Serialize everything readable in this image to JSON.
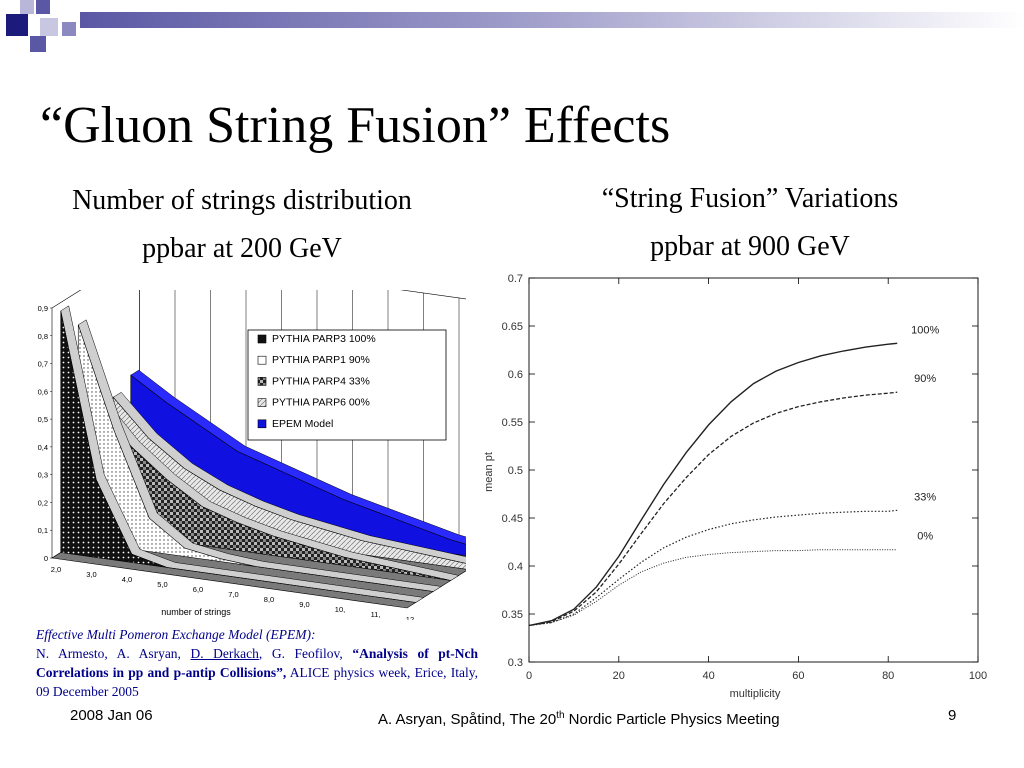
{
  "slide": {
    "title": "“Gluon String Fusion” Effects",
    "left_heading_1": "Number of strings distribution",
    "left_heading_2": "ppbar at 200 GeV",
    "right_heading_1": "“String Fusion” Variations",
    "right_heading_2": "ppbar at 900 GeV"
  },
  "reference": {
    "model_line": "Effective Multi Pomeron Exchange Model (EPEM):",
    "authors_a": "N. Armesto, A. Asryan, ",
    "author_underlined": "D. Derkach",
    "authors_b": ", G. Feofilov, ",
    "paper_title": "“Analysis of pt-Nch Correlations in pp and p-antip Collisions”,",
    "venue": " ALICE physics week, Erice, Italy, 09 December 2005"
  },
  "footer": {
    "date": "2008 Jan 06",
    "meeting_a": "A. Asryan, Spåtind, The 20",
    "meeting_sup": "th",
    "meeting_b": " Nordic Particle Physics Meeting",
    "page": "9"
  },
  "colors": {
    "accent": "#5a58a4",
    "reference_text": "#00008b",
    "epem_blue": "#1010e0"
  },
  "chart_data": [
    {
      "type": "area",
      "title": "",
      "xlabel": "number of strings",
      "ylabel": "",
      "x_tick_labels": [
        "2,0",
        "3,0",
        "4,0",
        "5,0",
        "6,0",
        "7,0",
        "8,0",
        "9,0",
        "10,",
        "11,",
        "12,"
      ],
      "y_tick_labels": [
        "0",
        "0,1",
        "0,2",
        "0,3",
        "0,4",
        "0,5",
        "0,6",
        "0,7",
        "0,8",
        "0,9"
      ],
      "ylim": [
        0,
        0.9
      ],
      "legend_placement": "top-right",
      "categories": [
        2,
        3,
        4,
        5,
        6,
        7,
        8,
        9,
        10,
        11,
        12
      ],
      "series": [
        {
          "name": "PYTHIA PARP3 100%",
          "values": [
            0.87,
            0.28,
            0.03,
            0.0,
            0.0,
            0.0,
            0.0,
            0.0,
            0.0,
            0.0,
            0.0
          ]
        },
        {
          "name": "PYTHIA PARP1  90%",
          "values": [
            0.78,
            0.42,
            0.12,
            0.03,
            0.01,
            0.0,
            0.0,
            0.0,
            0.0,
            0.0,
            0.0
          ]
        },
        {
          "name": "PYTHIA PARP4  33%",
          "values": [
            0.46,
            0.32,
            0.22,
            0.14,
            0.1,
            0.07,
            0.05,
            0.03,
            0.02,
            0.01,
            0.0
          ]
        },
        {
          "name": "PYTHIA PARP6  00%",
          "values": [
            0.44,
            0.31,
            0.22,
            0.16,
            0.12,
            0.09,
            0.07,
            0.05,
            0.04,
            0.03,
            0.02
          ]
        },
        {
          "name": "EPEM Model",
          "values": [
            0.48,
            0.4,
            0.33,
            0.26,
            0.22,
            0.18,
            0.14,
            0.11,
            0.08,
            0.05,
            0.03
          ]
        }
      ]
    },
    {
      "type": "line",
      "title": "",
      "xlabel": "multiplicity",
      "ylabel": "mean pt",
      "xlim": [
        0,
        100
      ],
      "ylim": [
        0.3,
        0.7
      ],
      "x_ticks": [
        0,
        20,
        40,
        60,
        80,
        100
      ],
      "y_ticks": [
        0.3,
        0.35,
        0.4,
        0.45,
        0.5,
        0.55,
        0.6,
        0.65,
        0.7
      ],
      "series": [
        {
          "name": "100%",
          "x": [
            0,
            5,
            10,
            15,
            20,
            25,
            30,
            35,
            40,
            45,
            50,
            55,
            60,
            65,
            70,
            75,
            80,
            82
          ],
          "y": [
            0.338,
            0.343,
            0.355,
            0.378,
            0.41,
            0.448,
            0.485,
            0.518,
            0.547,
            0.571,
            0.59,
            0.603,
            0.612,
            0.619,
            0.624,
            0.628,
            0.631,
            0.632
          ]
        },
        {
          "name": "90%",
          "x": [
            0,
            5,
            10,
            15,
            20,
            25,
            30,
            35,
            40,
            45,
            50,
            55,
            60,
            65,
            70,
            75,
            80,
            82
          ],
          "y": [
            0.338,
            0.342,
            0.353,
            0.373,
            0.402,
            0.434,
            0.465,
            0.492,
            0.516,
            0.535,
            0.549,
            0.559,
            0.566,
            0.571,
            0.575,
            0.578,
            0.58,
            0.581
          ]
        },
        {
          "name": "33%",
          "x": [
            0,
            5,
            10,
            15,
            20,
            25,
            30,
            35,
            40,
            45,
            50,
            55,
            60,
            65,
            70,
            75,
            80,
            82
          ],
          "y": [
            0.338,
            0.341,
            0.35,
            0.367,
            0.386,
            0.404,
            0.419,
            0.43,
            0.438,
            0.444,
            0.448,
            0.451,
            0.453,
            0.455,
            0.456,
            0.457,
            0.457,
            0.458
          ]
        },
        {
          "name": "0%",
          "x": [
            0,
            5,
            10,
            15,
            20,
            25,
            30,
            35,
            40,
            45,
            50,
            55,
            60,
            65,
            70,
            75,
            80,
            82
          ],
          "y": [
            0.338,
            0.341,
            0.349,
            0.363,
            0.38,
            0.394,
            0.403,
            0.409,
            0.412,
            0.414,
            0.415,
            0.416,
            0.416,
            0.417,
            0.417,
            0.417,
            0.417,
            0.417
          ]
        }
      ]
    }
  ]
}
